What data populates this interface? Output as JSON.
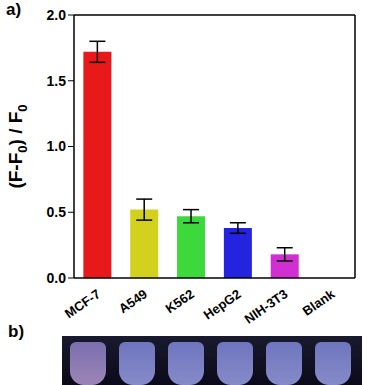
{
  "chart_data": {
    "type": "bar",
    "annotations": [
      "a)",
      "b)"
    ],
    "y_label": "(F-F0) / F0",
    "categories": [
      "MCF-7",
      "A549",
      "K562",
      "HepG2",
      "NIH-3T3",
      "Blank"
    ],
    "values": [
      1.72,
      0.52,
      0.47,
      0.38,
      0.18,
      0
    ],
    "errors": [
      0.08,
      0.08,
      0.05,
      0.04,
      0.05,
      null
    ],
    "colors": [
      "#e8191a",
      "#d2d21e",
      "#3cd83c",
      "#2424e0",
      "#d22fd2",
      "#888888"
    ],
    "ylim": [
      0,
      2
    ],
    "yticks": [
      {
        "value": 0,
        "label": "0.0"
      },
      0.5,
      {
        "value": 1,
        "label": "1.0"
      },
      1.5,
      {
        "value": 2,
        "label": "2.0"
      }
    ],
    "grid": false
  }
}
